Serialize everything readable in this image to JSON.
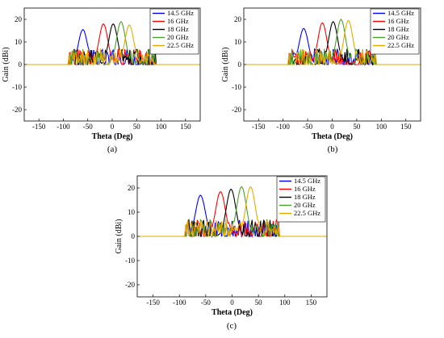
{
  "chart_data": [
    {
      "type": "line",
      "caption": "(a)",
      "xlabel": "Theta (Deg)",
      "ylabel": "Gain (dBi)",
      "xlim": [
        -180,
        180
      ],
      "ylim": [
        -25,
        25
      ],
      "xticks": [
        -150,
        -100,
        -50,
        0,
        50,
        100,
        150
      ],
      "yticks": [
        -20,
        -10,
        0,
        10,
        20
      ],
      "legend": "top-right",
      "series": [
        {
          "name": "14.5 GHz",
          "color": "#0000ff",
          "peak_x": -60,
          "peak_y": 15.5
        },
        {
          "name": "16 GHz",
          "color": "#ff0000",
          "peak_x": -18,
          "peak_y": 18
        },
        {
          "name": "18 GHz",
          "color": "#000000",
          "peak_x": 2,
          "peak_y": 18
        },
        {
          "name": "20 GHz",
          "color": "#4aa02c",
          "peak_x": 18,
          "peak_y": 19
        },
        {
          "name": "22.5 GHz",
          "color": "#e6a800",
          "peak_x": 35,
          "peak_y": 17.5
        }
      ]
    },
    {
      "type": "line",
      "caption": "(b)",
      "xlabel": "Theta (Deg)",
      "ylabel": "Gain (dBi)",
      "xlim": [
        -180,
        180
      ],
      "ylim": [
        -25,
        25
      ],
      "xticks": [
        -150,
        -100,
        -50,
        0,
        50,
        100,
        150
      ],
      "yticks": [
        -20,
        -10,
        0,
        10,
        20
      ],
      "legend": "top-right",
      "series": [
        {
          "name": "14.5 GHz",
          "color": "#0000ff",
          "peak_x": -58,
          "peak_y": 16
        },
        {
          "name": "16 GHz",
          "color": "#ff0000",
          "peak_x": -20,
          "peak_y": 18.5
        },
        {
          "name": "18 GHz",
          "color": "#000000",
          "peak_x": 2,
          "peak_y": 19
        },
        {
          "name": "20 GHz",
          "color": "#4aa02c",
          "peak_x": 18,
          "peak_y": 20
        },
        {
          "name": "22.5 GHz",
          "color": "#e6a800",
          "peak_x": 33,
          "peak_y": 19.5
        }
      ]
    },
    {
      "type": "line",
      "caption": "(c)",
      "xlabel": "Theta (Deg)",
      "ylabel": "Gain (dBi)",
      "xlim": [
        -180,
        180
      ],
      "ylim": [
        -25,
        25
      ],
      "xticks": [
        -150,
        -100,
        -50,
        0,
        50,
        100,
        150
      ],
      "yticks": [
        -20,
        -10,
        0,
        10,
        20
      ],
      "legend": "top-right",
      "series": [
        {
          "name": "14.5 GHz",
          "color": "#0000ff",
          "peak_x": -60,
          "peak_y": 17
        },
        {
          "name": "16 GHz",
          "color": "#ff0000",
          "peak_x": -22,
          "peak_y": 18.5
        },
        {
          "name": "18 GHz",
          "color": "#000000",
          "peak_x": -2,
          "peak_y": 19.5
        },
        {
          "name": "20 GHz",
          "color": "#4aa02c",
          "peak_x": 18,
          "peak_y": 20.5
        },
        {
          "name": "22.5 GHz",
          "color": "#e6a800",
          "peak_x": 35,
          "peak_y": 20.5
        }
      ]
    }
  ]
}
